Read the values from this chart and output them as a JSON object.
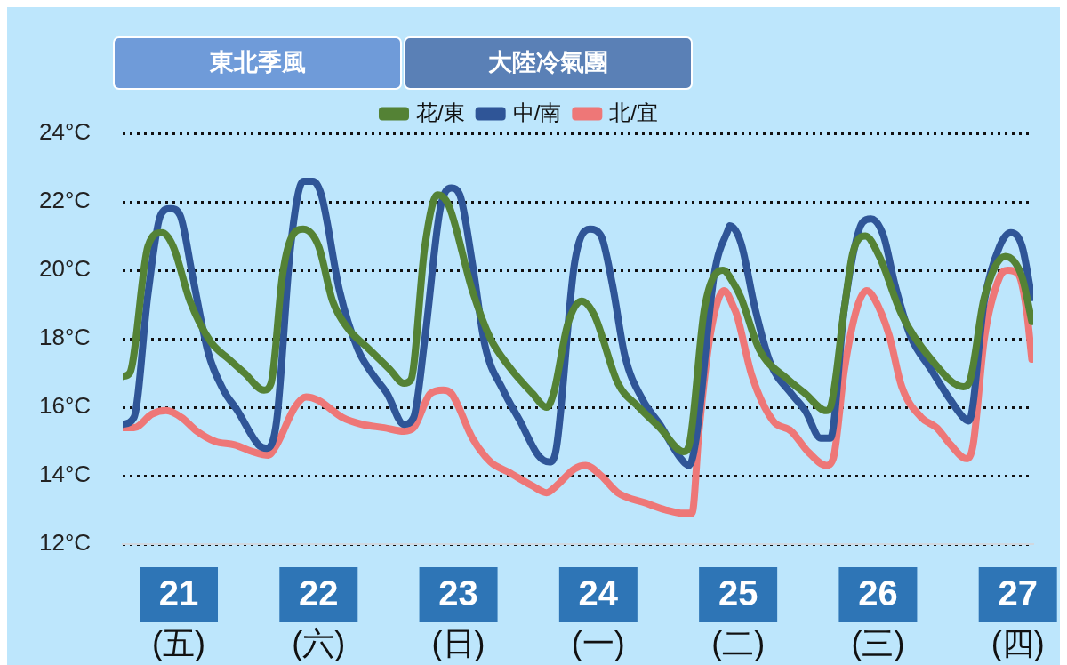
{
  "chart_data": {
    "type": "line",
    "xlim": [
      20.6,
      27.11
    ],
    "xticks": [
      {
        "value": 21,
        "label": "21\n(五)"
      },
      {
        "value": 22,
        "label": "22\n(六)"
      },
      {
        "value": 23,
        "label": "23\n(日)"
      },
      {
        "value": 24,
        "label": "24\n(一)"
      },
      {
        "value": 25,
        "label": "25\n(二)"
      },
      {
        "value": 26,
        "label": "26\n(三)"
      },
      {
        "value": 27,
        "label": "27\n(四)"
      }
    ],
    "ylim": [
      12,
      24
    ],
    "yticks": [
      {
        "value": 12,
        "label": "12°C"
      },
      {
        "value": 14,
        "label": "14°C"
      },
      {
        "value": 16,
        "label": "16°C"
      },
      {
        "value": 18,
        "label": "18°C"
      },
      {
        "value": 20,
        "label": "20°C"
      },
      {
        "value": 22,
        "label": "22°C"
      },
      {
        "value": 24,
        "label": "24°C"
      }
    ],
    "grid": "y",
    "legend": "top",
    "annotations": [
      "東北季風",
      "大陸冷氣團"
    ],
    "series": [
      {
        "name": "花/東",
        "color": "#548235",
        "x": [
          20.6,
          20.65,
          20.78,
          20.88,
          20.96,
          21.08,
          21.23,
          21.36,
          21.47,
          21.61,
          21.66,
          21.74,
          21.8,
          21.89,
          22.0,
          22.1,
          22.21,
          22.36,
          22.51,
          22.61,
          22.66,
          22.76,
          22.85,
          22.93,
          23.1,
          23.23,
          23.36,
          23.53,
          23.63,
          23.68,
          23.78,
          23.88,
          23.97,
          24.14,
          24.29,
          24.44,
          24.61,
          24.65,
          24.76,
          24.89,
          24.97,
          25.02,
          25.15,
          25.36,
          25.48,
          25.63,
          25.66,
          25.76,
          25.82,
          25.91,
          26.01,
          26.17,
          26.38,
          26.61,
          26.65,
          26.76,
          26.91,
          27.03,
          27.1
        ],
        "values": [
          16.9,
          17.0,
          20.7,
          21.1,
          20.7,
          19.1,
          17.9,
          17.4,
          17.0,
          16.5,
          16.7,
          19.8,
          20.9,
          21.2,
          20.7,
          19.1,
          18.3,
          17.7,
          17.1,
          16.7,
          16.8,
          20.7,
          22.2,
          21.9,
          19.4,
          18.0,
          17.2,
          16.4,
          16.0,
          16.4,
          18.4,
          19.1,
          18.7,
          16.7,
          16.0,
          15.4,
          14.7,
          14.9,
          18.9,
          20.0,
          19.6,
          19.2,
          17.7,
          16.8,
          16.4,
          15.9,
          16.0,
          18.9,
          20.5,
          21.0,
          20.4,
          18.7,
          17.4,
          16.6,
          16.7,
          19.2,
          20.4,
          19.8,
          18.5
        ]
      },
      {
        "name": "中/南",
        "color": "#2f5597",
        "x": [
          20.6,
          20.68,
          20.78,
          20.87,
          20.94,
          21.01,
          21.1,
          21.21,
          21.32,
          21.42,
          21.57,
          21.63,
          21.7,
          21.8,
          21.89,
          21.96,
          22.02,
          22.15,
          22.28,
          22.38,
          22.49,
          22.61,
          22.68,
          22.76,
          22.87,
          22.95,
          23.01,
          23.1,
          23.19,
          23.32,
          23.44,
          23.57,
          23.65,
          23.7,
          23.83,
          23.94,
          24.02,
          24.1,
          24.19,
          24.32,
          24.44,
          24.59,
          24.65,
          24.7,
          24.83,
          24.93,
          24.94,
          25.02,
          25.12,
          25.23,
          25.38,
          25.48,
          25.59,
          25.66,
          25.76,
          25.89,
          25.95,
          26.04,
          26.12,
          26.23,
          26.38,
          26.52,
          26.61,
          26.65,
          26.76,
          26.87,
          26.95,
          27.03,
          27.1
        ],
        "values": [
          15.5,
          15.7,
          19.3,
          21.6,
          21.8,
          21.6,
          19.8,
          17.6,
          16.5,
          15.9,
          14.9,
          14.8,
          15.6,
          20.7,
          22.6,
          22.6,
          22.2,
          19.4,
          17.7,
          17.0,
          16.4,
          15.5,
          15.7,
          18.0,
          21.8,
          22.4,
          22.2,
          20.2,
          17.8,
          16.5,
          15.6,
          14.6,
          14.4,
          14.8,
          20.2,
          21.2,
          21.0,
          19.6,
          17.5,
          16.2,
          15.5,
          14.5,
          14.3,
          15.1,
          19.9,
          21.2,
          21.3,
          20.8,
          18.9,
          17.3,
          16.4,
          15.9,
          15.1,
          15.1,
          18.9,
          21.4,
          21.5,
          21.0,
          19.6,
          18.1,
          17.1,
          16.2,
          15.7,
          15.6,
          19.1,
          20.7,
          21.1,
          20.7,
          19.2
        ]
      },
      {
        "name": "北/宜",
        "color": "#ee7777",
        "x": [
          20.6,
          20.68,
          20.81,
          20.91,
          21.02,
          21.13,
          21.26,
          21.4,
          21.53,
          21.64,
          21.7,
          21.83,
          21.91,
          22.0,
          22.17,
          22.31,
          22.47,
          22.61,
          22.68,
          22.8,
          22.89,
          22.95,
          23.1,
          23.23,
          23.36,
          23.53,
          23.63,
          23.7,
          23.83,
          23.91,
          24.02,
          24.14,
          24.34,
          24.48,
          24.61,
          24.67,
          24.72,
          24.8,
          24.9,
          24.97,
          24.99,
          25.1,
          25.25,
          25.38,
          25.5,
          25.63,
          25.68,
          25.76,
          25.85,
          25.92,
          25.97,
          26.08,
          26.17,
          26.31,
          26.42,
          26.52,
          26.63,
          26.68,
          26.76,
          26.87,
          26.93,
          27.0,
          27.06,
          27.1
        ],
        "values": [
          15.4,
          15.4,
          15.8,
          15.9,
          15.7,
          15.3,
          15.0,
          14.9,
          14.7,
          14.6,
          14.9,
          16.0,
          16.3,
          16.2,
          15.7,
          15.5,
          15.4,
          15.3,
          15.4,
          16.4,
          16.5,
          16.4,
          15.1,
          14.4,
          14.1,
          13.7,
          13.5,
          13.7,
          14.2,
          14.3,
          14.0,
          13.5,
          13.2,
          13.0,
          12.9,
          12.9,
          15.3,
          18.1,
          19.4,
          18.9,
          18.7,
          16.9,
          15.6,
          15.3,
          14.7,
          14.3,
          14.5,
          17.1,
          18.9,
          19.4,
          19.2,
          18.1,
          16.6,
          15.7,
          15.4,
          14.9,
          14.5,
          14.9,
          18.0,
          19.8,
          20.0,
          19.9,
          18.9,
          17.4
        ]
      }
    ]
  }
}
